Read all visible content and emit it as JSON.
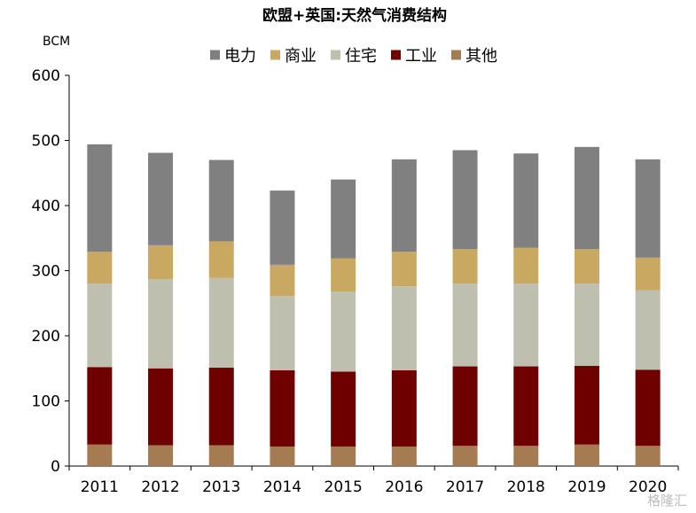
{
  "chart_data": {
    "type": "bar",
    "stacked": true,
    "title": "欧盟+英国:天然气消费结构",
    "ylabel": "BCM",
    "xlabel": "",
    "ylim": [
      0,
      600
    ],
    "yticks": [
      0,
      100,
      200,
      300,
      400,
      500,
      600
    ],
    "grid": false,
    "legend_position": "top",
    "categories": [
      "2011",
      "2012",
      "2013",
      "2014",
      "2015",
      "2016",
      "2017",
      "2018",
      "2019",
      "2020"
    ],
    "series": [
      {
        "name": "其他",
        "color": "#A57C52",
        "values": [
          33,
          32,
          32,
          30,
          30,
          30,
          31,
          31,
          33,
          31
        ]
      },
      {
        "name": "工业",
        "color": "#6E0000",
        "values": [
          119,
          118,
          119,
          117,
          115,
          117,
          122,
          122,
          121,
          117
        ]
      },
      {
        "name": "住宅",
        "color": "#BFBFAF",
        "values": [
          128,
          137,
          138,
          114,
          123,
          129,
          127,
          127,
          126,
          122
        ]
      },
      {
        "name": "商业",
        "color": "#C9A862",
        "values": [
          49,
          52,
          56,
          48,
          51,
          53,
          53,
          55,
          53,
          50
        ]
      },
      {
        "name": "电力",
        "color": "#808080",
        "values": [
          165,
          142,
          125,
          114,
          121,
          142,
          152,
          145,
          157,
          151
        ]
      }
    ],
    "legend_order": [
      "电力",
      "商业",
      "住宅",
      "工业",
      "其他"
    ]
  },
  "watermark": "格隆汇"
}
